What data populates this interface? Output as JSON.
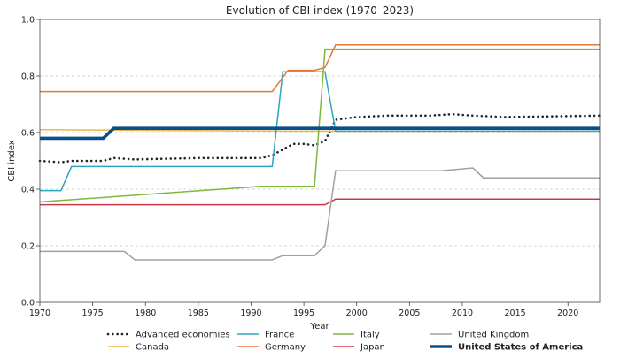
{
  "chart_data": {
    "type": "line",
    "title": "Evolution of CBI index (1970–2023)",
    "xlabel": "Year",
    "ylabel": "CBI index",
    "xlim": [
      1970,
      2023
    ],
    "ylim": [
      0.0,
      1.0
    ],
    "xticks": [
      1970,
      1975,
      1980,
      1985,
      1990,
      1995,
      2000,
      2005,
      2010,
      2015,
      2020
    ],
    "yticks": [
      0.0,
      0.2,
      0.4,
      0.6,
      0.8,
      1.0
    ],
    "ytick_labels": [
      "0.0",
      "0.2",
      "0.4",
      "0.6",
      "0.8",
      "1.0"
    ],
    "grid": "horizontal-dashed",
    "legend_position": "bottom",
    "series": [
      {
        "name": "Advanced economies",
        "color": "#222233",
        "style": "dotted",
        "bold": false,
        "step": false,
        "x": [
          1970,
          1972,
          1973,
          1976,
          1977,
          1979,
          1985,
          1990,
          1991,
          1992,
          1993,
          1994,
          1995,
          1996,
          1997,
          1998,
          1999,
          2000,
          2003,
          2007,
          2009,
          2011,
          2014,
          2023
        ],
        "y": [
          0.5,
          0.495,
          0.5,
          0.5,
          0.51,
          0.505,
          0.51,
          0.51,
          0.51,
          0.52,
          0.54,
          0.56,
          0.56,
          0.555,
          0.57,
          0.645,
          0.65,
          0.655,
          0.66,
          0.66,
          0.665,
          0.66,
          0.655,
          0.66
        ]
      },
      {
        "name": "Canada",
        "color": "#E8B84A",
        "style": "solid",
        "bold": false,
        "step": true,
        "x": [
          1970,
          1994,
          2023
        ],
        "y": [
          0.61,
          0.605,
          0.605
        ]
      },
      {
        "name": "France",
        "color": "#2AA7BE",
        "style": "solid",
        "bold": false,
        "step": true,
        "x": [
          1970,
          1972,
          1973,
          1992,
          1993,
          1997,
          1998,
          2023
        ],
        "y": [
          0.395,
          0.395,
          0.48,
          0.48,
          0.815,
          0.815,
          0.605,
          0.605
        ]
      },
      {
        "name": "Germany",
        "color": "#E5773A",
        "style": "solid",
        "bold": false,
        "step": false,
        "x": [
          1970,
          1992,
          1993.5,
          1996,
          1997,
          1998,
          2023
        ],
        "y": [
          0.745,
          0.745,
          0.82,
          0.82,
          0.83,
          0.91,
          0.91
        ]
      },
      {
        "name": "Italy",
        "color": "#7DB83A",
        "style": "solid",
        "bold": false,
        "step": true,
        "x": [
          1970,
          1991,
          1996,
          1997,
          2023
        ],
        "y": [
          0.355,
          0.41,
          0.41,
          0.895,
          0.895
        ]
      },
      {
        "name": "Japan",
        "color": "#C8384A",
        "style": "solid",
        "bold": false,
        "step": true,
        "x": [
          1970,
          1997,
          1998,
          2023
        ],
        "y": [
          0.345,
          0.345,
          0.365,
          0.365
        ]
      },
      {
        "name": "United Kingdom",
        "color": "#A0A0A0",
        "style": "solid",
        "bold": false,
        "step": true,
        "x": [
          1970,
          1978,
          1979,
          1992,
          1993,
          1996,
          1997,
          1998,
          2008,
          2011,
          2012,
          2023
        ],
        "y": [
          0.18,
          0.18,
          0.15,
          0.15,
          0.165,
          0.165,
          0.2,
          0.465,
          0.465,
          0.475,
          0.44,
          0.44
        ]
      },
      {
        "name": "United States of America",
        "color": "#0B4F8A",
        "style": "solid",
        "bold": true,
        "step": true,
        "x": [
          1970,
          1976,
          1977,
          2023
        ],
        "y": [
          0.58,
          0.58,
          0.615,
          0.615
        ]
      }
    ],
    "legend_order": [
      "Advanced economies",
      "Canada",
      "France",
      "Germany",
      "Italy",
      "Japan",
      "United Kingdom",
      "United States of America"
    ]
  }
}
